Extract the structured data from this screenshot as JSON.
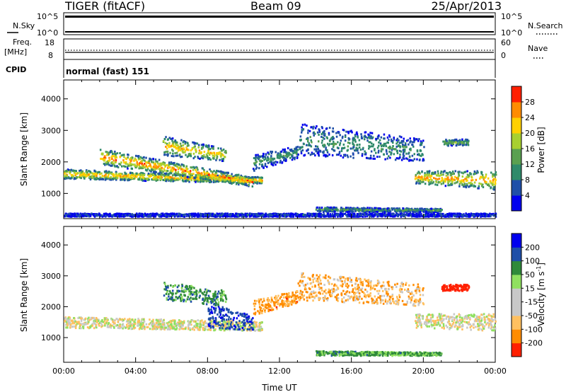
{
  "header": {
    "radar": "TIGER (fitACF)",
    "beam": "Beam 09",
    "date": "25/Apr/2013"
  },
  "status_panels": {
    "nsky_label": "N.Sky",
    "nsky_ticks": [
      "10^5",
      "10^0"
    ],
    "nsearch_label": "N.Search",
    "nsearch_ticks": [
      "10^5",
      "10^0"
    ],
    "freq_label": "Freq.",
    "freq_unit": "[MHz]",
    "freq_ticks": [
      "18",
      "8"
    ],
    "nave_label": "Nave",
    "nave_ticks": [
      "60",
      "0"
    ],
    "cpid_label": "CPID",
    "cpid_value": "normal (fast) 151"
  },
  "chart_data": [
    {
      "type": "heatmap",
      "id": "power",
      "ylabel": "Slant Range [km]",
      "ylim": [
        200,
        4600
      ],
      "yticks": [
        "1000",
        "2000",
        "3000",
        "4000"
      ],
      "xlim": [
        0,
        24
      ],
      "colorbar_label": "Power [dB]",
      "colorbar_ticks": [
        "4",
        "8",
        "12",
        "16",
        "20",
        "24",
        "28"
      ],
      "colorbar_levels": [
        0,
        4,
        8,
        12,
        16,
        20,
        24,
        28,
        32
      ],
      "colors": [
        "#0000ee",
        "#1f4fa8",
        "#2f8a6a",
        "#5aa050",
        "#a8d030",
        "#ffd000",
        "#ff8c00",
        "#ff2000"
      ],
      "scatter_regions": [
        {
          "t": [
            0,
            11
          ],
          "range_start": [
            1450,
            1300
          ],
          "range_end": [
            1750,
            1500
          ],
          "peak": 26
        },
        {
          "t": [
            2,
            10.5
          ],
          "range_start": [
            1900,
            1200
          ],
          "range_end": [
            2400,
            1500
          ],
          "peak": 28
        },
        {
          "t": [
            5.5,
            9
          ],
          "range_start": [
            2200,
            2000
          ],
          "range_end": [
            2800,
            2400
          ],
          "peak": 24
        },
        {
          "t": [
            10.5,
            13
          ],
          "range_start": [
            1700,
            2100
          ],
          "range_end": [
            2200,
            2500
          ],
          "peak": 12
        },
        {
          "t": [
            13,
            20
          ],
          "range_start": [
            2200,
            2000
          ],
          "range_end": [
            3200,
            2700
          ],
          "peak": 12
        },
        {
          "t": [
            19.5,
            24
          ],
          "range_start": [
            1300,
            1100
          ],
          "range_end": [
            1700,
            1700
          ],
          "peak": 26
        },
        {
          "t": [
            21,
            22.5
          ],
          "range_start": [
            2500,
            2500
          ],
          "range_end": [
            2700,
            2700
          ],
          "peak": 16
        },
        {
          "t": [
            14,
            21
          ],
          "range_start": [
            400,
            400
          ],
          "range_end": [
            550,
            500
          ],
          "peak": 14
        },
        {
          "t": [
            0,
            24
          ],
          "range_start": [
            250,
            250
          ],
          "range_end": [
            350,
            350
          ],
          "peak": 6
        }
      ]
    },
    {
      "type": "heatmap",
      "id": "velocity",
      "ylabel": "Slant Range [km]",
      "ylim": [
        200,
        4600
      ],
      "yticks": [
        "1000",
        "2000",
        "3000",
        "4000"
      ],
      "xlim": [
        0,
        24
      ],
      "xlabel": "Time UT",
      "xticks": [
        "00:00",
        "04:00",
        "08:00",
        "12:00",
        "16:00",
        "20:00",
        "00:00"
      ],
      "colorbar_label": "Velocity [m s",
      "colorbar_label_sup": "-1",
      "colorbar_label_end": "]",
      "colorbar_ticks": [
        "-200",
        "-100",
        "-50",
        "-15",
        "15",
        "50",
        "100",
        "200"
      ],
      "colors": [
        "#ff2000",
        "#ff8c00",
        "#ffc060",
        "#c8c8c8",
        "#c8c8c8",
        "#90e060",
        "#2f8a3a",
        "#1f4fa8",
        "#0000ee"
      ],
      "scatter_regions": [
        {
          "t": [
            0,
            11
          ],
          "range_start": [
            1300,
            1200
          ],
          "range_end": [
            1650,
            1500
          ],
          "v": 0
        },
        {
          "t": [
            8,
            10.5
          ],
          "range_start": [
            1300,
            1200
          ],
          "range_end": [
            2100,
            1700
          ],
          "v": 180
        },
        {
          "t": [
            5.5,
            9
          ],
          "range_start": [
            2200,
            2000
          ],
          "range_end": [
            2800,
            2500
          ],
          "v": 80
        },
        {
          "t": [
            10.5,
            13
          ],
          "range_start": [
            1700,
            2100
          ],
          "range_end": [
            2200,
            2500
          ],
          "v": -60
        },
        {
          "t": [
            13,
            20
          ],
          "range_start": [
            2200,
            2000
          ],
          "range_end": [
            3100,
            2700
          ],
          "v": -40
        },
        {
          "t": [
            19.5,
            24
          ],
          "range_start": [
            1300,
            1200
          ],
          "range_end": [
            1750,
            1750
          ],
          "v": 0
        },
        {
          "t": [
            21,
            22.5
          ],
          "range_start": [
            2500,
            2500
          ],
          "range_end": [
            2700,
            2700
          ],
          "v": -150
        },
        {
          "t": [
            14,
            21
          ],
          "range_start": [
            400,
            400
          ],
          "range_end": [
            550,
            500
          ],
          "v": 60
        }
      ]
    }
  ]
}
